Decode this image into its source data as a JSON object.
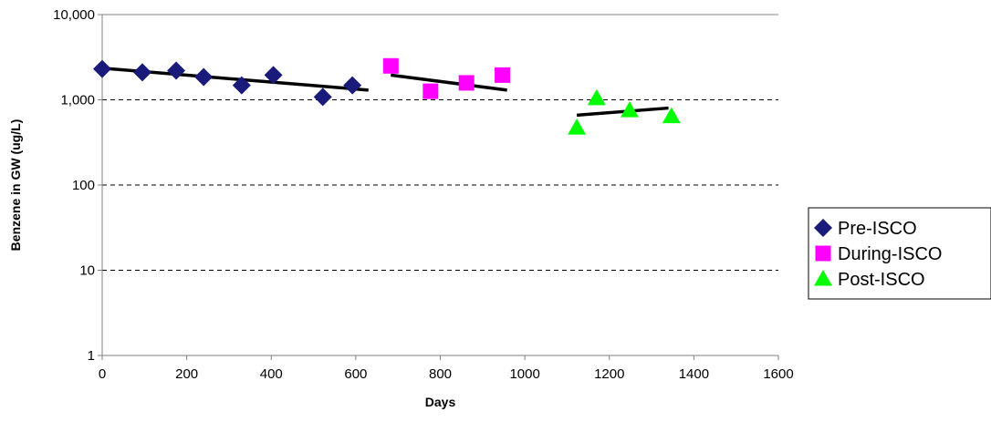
{
  "chart_data": {
    "type": "scatter",
    "xlabel": "Days",
    "ylabel": "Benzene in GW (ug/L)",
    "xlim": [
      0,
      1600
    ],
    "ylim": [
      1,
      10000
    ],
    "y_scale": "log",
    "x_ticks": [
      0,
      200,
      400,
      600,
      800,
      1000,
      1200,
      1400,
      1600
    ],
    "x_tick_labels": [
      "0",
      "200",
      "400",
      "600",
      "800",
      "1000",
      "1200",
      "1400",
      "1600"
    ],
    "y_ticks": [
      1,
      10,
      100,
      1000,
      10000
    ],
    "y_tick_labels": [
      "1",
      "10",
      "100",
      "1,000",
      "10,000"
    ],
    "grid": "horizontal dashed at y-ticks",
    "legend_position": "right",
    "series": [
      {
        "name": "Pre-ISCO",
        "marker": "diamond",
        "color": "#1a1a7a",
        "points": [
          [
            0,
            2300
          ],
          [
            95,
            2100
          ],
          [
            175,
            2200
          ],
          [
            240,
            1850
          ],
          [
            330,
            1480
          ],
          [
            405,
            1950
          ],
          [
            522,
            1080
          ],
          [
            592,
            1480
          ]
        ],
        "trendline": [
          [
            0,
            2350
          ],
          [
            630,
            1300
          ]
        ]
      },
      {
        "name": "During-ISCO",
        "marker": "square",
        "color": "#ff00ff",
        "points": [
          [
            683,
            2500
          ],
          [
            777,
            1260
          ],
          [
            862,
            1580
          ],
          [
            947,
            1950
          ]
        ],
        "trendline": [
          [
            683,
            1950
          ],
          [
            958,
            1300
          ]
        ]
      },
      {
        "name": "Post-ISCO",
        "marker": "triangle",
        "color": "#00ff00",
        "points": [
          [
            1123,
            470
          ],
          [
            1170,
            1040
          ],
          [
            1248,
            750
          ],
          [
            1347,
            640
          ]
        ],
        "trendline": [
          [
            1123,
            660
          ],
          [
            1340,
            800
          ]
        ]
      }
    ]
  },
  "trendline_color": "#000000",
  "grid_color": "#000000",
  "axis_color": "#808080"
}
